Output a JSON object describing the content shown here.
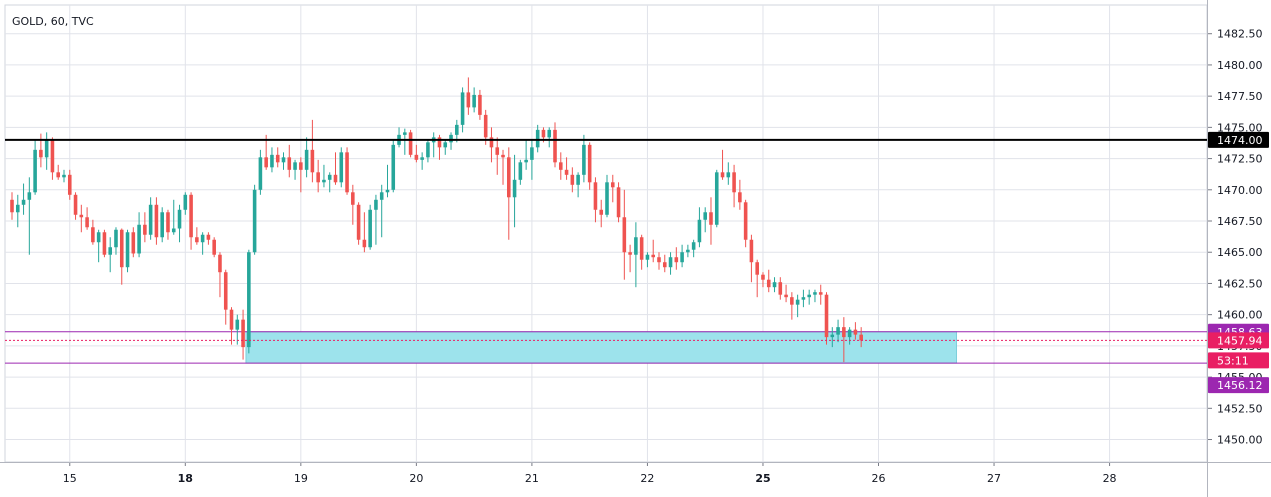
{
  "symbol_title": "GOLD, 60, TVC",
  "colors": {
    "up_body": "#26a69a",
    "down_body": "#ef5350",
    "wick_up": "#26a69a",
    "wick_down": "#ef5350",
    "grid": "#e1e3ea",
    "axis_text": "#131722",
    "zone_fill": "#9de3ec",
    "zone_border": "#9c27b0",
    "resistance_line": "#000000",
    "last_price_red": "#e91e63",
    "zone_label": "#9c27b0"
  },
  "chart_data": {
    "type": "candlestick",
    "title": "GOLD, 60, TVC",
    "ylim": [
      1448.2,
      1484.8
    ],
    "y_ticks": [
      "1482.50",
      "1480.00",
      "1477.50",
      "1475.00",
      "1472.50",
      "1470.00",
      "1467.50",
      "1465.00",
      "1462.50",
      "1460.00",
      "1457.50",
      "1455.00",
      "1452.50",
      "1450.00"
    ],
    "x_ticks": [
      {
        "label": "15",
        "bar": 10,
        "bold": false
      },
      {
        "label": "18",
        "bar": 30,
        "bold": true
      },
      {
        "label": "19",
        "bar": 50,
        "bold": false
      },
      {
        "label": "20",
        "bar": 70,
        "bold": false
      },
      {
        "label": "21",
        "bar": 90,
        "bold": false
      },
      {
        "label": "22",
        "bar": 110,
        "bold": false
      },
      {
        "label": "25",
        "bar": 130,
        "bold": true
      },
      {
        "label": "26",
        "bar": 150,
        "bold": false
      },
      {
        "label": "27",
        "bar": 170,
        "bold": false
      },
      {
        "label": "28",
        "bar": 190,
        "bold": false
      }
    ],
    "bar_range": [
      0,
      206
    ],
    "resistance_level": 1474.0,
    "resistance_label": "1474.00",
    "zone": {
      "top": 1458.63,
      "bottom": 1456.12,
      "start_bar": 40.5,
      "end_bar": 163.5
    },
    "zone_top_label": "1458.63",
    "zone_bottom_label": "1456.12",
    "last_price": 1457.94,
    "last_price_label": "1457.94",
    "countdown_label": "53:11",
    "candles": [
      [
        1469.2,
        1469.8,
        1467.6,
        1468.2
      ],
      [
        1468.2,
        1469.6,
        1467.0,
        1468.8
      ],
      [
        1468.8,
        1470.5,
        1468.0,
        1469.2
      ],
      [
        1469.2,
        1471.0,
        1464.8,
        1469.8
      ],
      [
        1469.8,
        1474.0,
        1469.6,
        1473.2
      ],
      [
        1473.2,
        1474.5,
        1471.8,
        1472.6
      ],
      [
        1472.6,
        1474.6,
        1471.6,
        1474.0
      ],
      [
        1474.0,
        1474.2,
        1470.8,
        1471.4
      ],
      [
        1471.4,
        1472.0,
        1470.8,
        1471.0
      ],
      [
        1471.0,
        1471.6,
        1470.6,
        1471.2
      ],
      [
        1471.2,
        1471.6,
        1469.2,
        1469.6
      ],
      [
        1469.6,
        1469.8,
        1467.6,
        1468.0
      ],
      [
        1468.0,
        1468.8,
        1466.6,
        1467.8
      ],
      [
        1467.8,
        1468.6,
        1466.8,
        1467.0
      ],
      [
        1467.0,
        1467.6,
        1465.6,
        1465.8
      ],
      [
        1465.8,
        1466.8,
        1464.2,
        1466.6
      ],
      [
        1466.6,
        1466.8,
        1464.6,
        1464.8
      ],
      [
        1464.8,
        1466.2,
        1463.4,
        1465.4
      ],
      [
        1465.4,
        1467.0,
        1464.8,
        1466.8
      ],
      [
        1466.8,
        1466.9,
        1462.4,
        1463.8
      ],
      [
        1463.8,
        1466.8,
        1463.4,
        1466.6
      ],
      [
        1466.6,
        1467.0,
        1464.6,
        1464.9
      ],
      [
        1464.9,
        1468.2,
        1464.6,
        1467.2
      ],
      [
        1467.2,
        1468.2,
        1465.8,
        1466.4
      ],
      [
        1466.4,
        1469.4,
        1466.0,
        1468.8
      ],
      [
        1468.8,
        1469.4,
        1465.6,
        1466.2
      ],
      [
        1466.2,
        1468.6,
        1465.8,
        1468.2
      ],
      [
        1468.2,
        1468.4,
        1466.0,
        1466.6
      ],
      [
        1466.6,
        1469.2,
        1466.4,
        1466.9
      ],
      [
        1466.9,
        1468.8,
        1465.8,
        1468.4
      ],
      [
        1468.4,
        1469.8,
        1468.0,
        1469.6
      ],
      [
        1469.6,
        1469.8,
        1465.2,
        1466.2
      ],
      [
        1466.2,
        1467.0,
        1465.6,
        1465.8
      ],
      [
        1465.8,
        1466.6,
        1464.8,
        1466.4
      ],
      [
        1466.4,
        1466.6,
        1465.6,
        1466.0
      ],
      [
        1466.0,
        1466.2,
        1464.6,
        1464.8
      ],
      [
        1464.8,
        1465.0,
        1461.4,
        1463.4
      ],
      [
        1463.4,
        1463.6,
        1459.2,
        1460.4
      ],
      [
        1460.4,
        1460.6,
        1457.6,
        1458.8
      ],
      [
        1458.8,
        1460.0,
        1457.6,
        1459.6
      ],
      [
        1459.6,
        1460.4,
        1456.4,
        1457.4
      ],
      [
        1457.4,
        1465.2,
        1456.9,
        1465.0
      ],
      [
        1465.0,
        1470.4,
        1464.8,
        1470.0
      ],
      [
        1470.0,
        1473.2,
        1469.6,
        1472.6
      ],
      [
        1472.6,
        1474.4,
        1471.6,
        1471.8
      ],
      [
        1471.8,
        1473.4,
        1471.4,
        1472.8
      ],
      [
        1472.8,
        1473.4,
        1471.8,
        1472.2
      ],
      [
        1472.2,
        1473.0,
        1471.6,
        1472.6
      ],
      [
        1472.6,
        1473.6,
        1471.0,
        1471.6
      ],
      [
        1471.6,
        1472.4,
        1470.8,
        1472.2
      ],
      [
        1472.2,
        1472.6,
        1469.8,
        1471.6
      ],
      [
        1471.6,
        1474.2,
        1471.0,
        1473.2
      ],
      [
        1473.2,
        1475.6,
        1470.6,
        1471.4
      ],
      [
        1471.4,
        1472.4,
        1469.8,
        1470.6
      ],
      [
        1470.6,
        1472.0,
        1470.2,
        1470.8
      ],
      [
        1470.8,
        1471.4,
        1469.8,
        1471.2
      ],
      [
        1471.2,
        1473.0,
        1470.4,
        1470.6
      ],
      [
        1470.6,
        1473.4,
        1470.2,
        1473.0
      ],
      [
        1473.0,
        1473.4,
        1469.6,
        1469.8
      ],
      [
        1469.8,
        1470.4,
        1467.2,
        1468.8
      ],
      [
        1468.8,
        1469.0,
        1465.6,
        1466.0
      ],
      [
        1466.0,
        1468.2,
        1465.0,
        1465.4
      ],
      [
        1465.4,
        1468.8,
        1465.2,
        1468.4
      ],
      [
        1468.4,
        1469.6,
        1465.6,
        1469.2
      ],
      [
        1469.2,
        1470.4,
        1466.2,
        1469.8
      ],
      [
        1469.8,
        1472.0,
        1469.4,
        1470.0
      ],
      [
        1470.0,
        1474.0,
        1469.8,
        1473.6
      ],
      [
        1473.6,
        1475.0,
        1473.4,
        1474.4
      ],
      [
        1474.4,
        1474.9,
        1472.8,
        1474.6
      ],
      [
        1474.6,
        1474.8,
        1472.6,
        1472.8
      ],
      [
        1472.8,
        1473.6,
        1472.2,
        1472.4
      ],
      [
        1472.4,
        1473.0,
        1471.6,
        1472.6
      ],
      [
        1472.6,
        1474.0,
        1472.2,
        1473.8
      ],
      [
        1473.8,
        1474.6,
        1472.6,
        1474.2
      ],
      [
        1474.2,
        1474.4,
        1472.4,
        1473.4
      ],
      [
        1473.4,
        1474.0,
        1472.8,
        1473.8
      ],
      [
        1473.8,
        1474.6,
        1473.2,
        1474.4
      ],
      [
        1474.4,
        1475.6,
        1473.8,
        1475.2
      ],
      [
        1475.2,
        1478.2,
        1474.6,
        1477.8
      ],
      [
        1477.8,
        1479.0,
        1476.0,
        1476.6
      ],
      [
        1476.6,
        1478.2,
        1476.2,
        1477.6
      ],
      [
        1477.6,
        1478.0,
        1475.6,
        1476.0
      ],
      [
        1476.0,
        1476.4,
        1473.6,
        1474.2
      ],
      [
        1474.2,
        1475.0,
        1472.2,
        1473.4
      ],
      [
        1473.4,
        1474.2,
        1471.2,
        1472.8
      ],
      [
        1472.8,
        1473.2,
        1470.4,
        1472.6
      ],
      [
        1472.6,
        1473.4,
        1466.0,
        1469.4
      ],
      [
        1469.4,
        1472.8,
        1467.0,
        1470.8
      ],
      [
        1470.8,
        1472.4,
        1470.4,
        1472.2
      ],
      [
        1472.2,
        1474.0,
        1471.6,
        1472.4
      ],
      [
        1472.4,
        1474.0,
        1470.8,
        1473.4
      ],
      [
        1473.4,
        1475.2,
        1473.0,
        1474.8
      ],
      [
        1474.8,
        1475.0,
        1473.8,
        1474.2
      ],
      [
        1474.2,
        1475.0,
        1473.4,
        1474.8
      ],
      [
        1474.8,
        1475.4,
        1471.8,
        1472.2
      ],
      [
        1472.2,
        1473.0,
        1470.8,
        1471.6
      ],
      [
        1471.6,
        1472.6,
        1470.8,
        1471.2
      ],
      [
        1471.2,
        1471.8,
        1469.8,
        1470.4
      ],
      [
        1470.4,
        1471.4,
        1469.4,
        1471.2
      ],
      [
        1471.2,
        1474.4,
        1470.6,
        1473.6
      ],
      [
        1473.6,
        1473.8,
        1470.0,
        1470.6
      ],
      [
        1470.6,
        1471.0,
        1467.4,
        1468.4
      ],
      [
        1468.4,
        1469.2,
        1467.0,
        1468.0
      ],
      [
        1468.0,
        1471.2,
        1467.8,
        1470.6
      ],
      [
        1470.6,
        1471.2,
        1469.0,
        1470.2
      ],
      [
        1470.2,
        1470.6,
        1467.4,
        1467.8
      ],
      [
        1467.8,
        1470.0,
        1462.8,
        1465.0
      ],
      [
        1465.0,
        1465.6,
        1463.4,
        1464.8
      ],
      [
        1464.8,
        1467.4,
        1462.2,
        1466.2
      ],
      [
        1466.2,
        1466.4,
        1463.6,
        1464.4
      ],
      [
        1464.4,
        1465.0,
        1463.8,
        1464.8
      ],
      [
        1464.8,
        1466.0,
        1464.2,
        1464.6
      ],
      [
        1464.6,
        1465.0,
        1463.6,
        1464.2
      ],
      [
        1464.2,
        1464.8,
        1463.4,
        1463.8
      ],
      [
        1463.8,
        1465.0,
        1463.2,
        1464.6
      ],
      [
        1464.6,
        1465.4,
        1463.6,
        1464.2
      ],
      [
        1464.2,
        1465.6,
        1463.8,
        1465.0
      ],
      [
        1465.0,
        1465.6,
        1464.6,
        1465.2
      ],
      [
        1465.2,
        1466.0,
        1464.6,
        1465.8
      ],
      [
        1465.8,
        1468.6,
        1465.4,
        1467.6
      ],
      [
        1467.6,
        1468.6,
        1466.6,
        1468.2
      ],
      [
        1468.2,
        1469.4,
        1465.6,
        1467.2
      ],
      [
        1467.2,
        1471.6,
        1467.0,
        1471.4
      ],
      [
        1471.4,
        1473.2,
        1470.8,
        1471.0
      ],
      [
        1471.0,
        1472.2,
        1470.4,
        1471.4
      ],
      [
        1471.4,
        1472.0,
        1468.6,
        1469.8
      ],
      [
        1469.8,
        1470.8,
        1468.4,
        1469.0
      ],
      [
        1469.0,
        1469.2,
        1465.4,
        1466.0
      ],
      [
        1466.0,
        1466.4,
        1462.6,
        1464.2
      ],
      [
        1464.2,
        1464.4,
        1461.4,
        1463.2
      ],
      [
        1463.2,
        1463.4,
        1462.2,
        1462.8
      ],
      [
        1462.8,
        1463.6,
        1461.8,
        1462.2
      ],
      [
        1462.2,
        1463.0,
        1461.8,
        1462.6
      ],
      [
        1462.6,
        1463.0,
        1461.2,
        1461.6
      ],
      [
        1461.6,
        1462.4,
        1461.0,
        1461.4
      ],
      [
        1461.4,
        1461.8,
        1459.6,
        1460.8
      ],
      [
        1460.8,
        1461.6,
        1459.8,
        1461.2
      ],
      [
        1461.2,
        1462.0,
        1460.6,
        1461.4
      ],
      [
        1461.4,
        1462.0,
        1460.8,
        1461.6
      ],
      [
        1461.6,
        1462.0,
        1461.0,
        1461.8
      ],
      [
        1461.8,
        1462.4,
        1460.8,
        1461.6
      ],
      [
        1461.6,
        1461.8,
        1457.6,
        1458.2
      ],
      [
        1458.2,
        1459.0,
        1457.4,
        1458.4
      ],
      [
        1458.4,
        1459.6,
        1457.8,
        1459.0
      ],
      [
        1459.0,
        1459.8,
        1456.2,
        1458.2
      ],
      [
        1458.2,
        1459.0,
        1457.6,
        1458.8
      ],
      [
        1458.8,
        1459.4,
        1458.0,
        1458.4
      ],
      [
        1458.4,
        1459.0,
        1457.4,
        1457.94
      ]
    ]
  }
}
